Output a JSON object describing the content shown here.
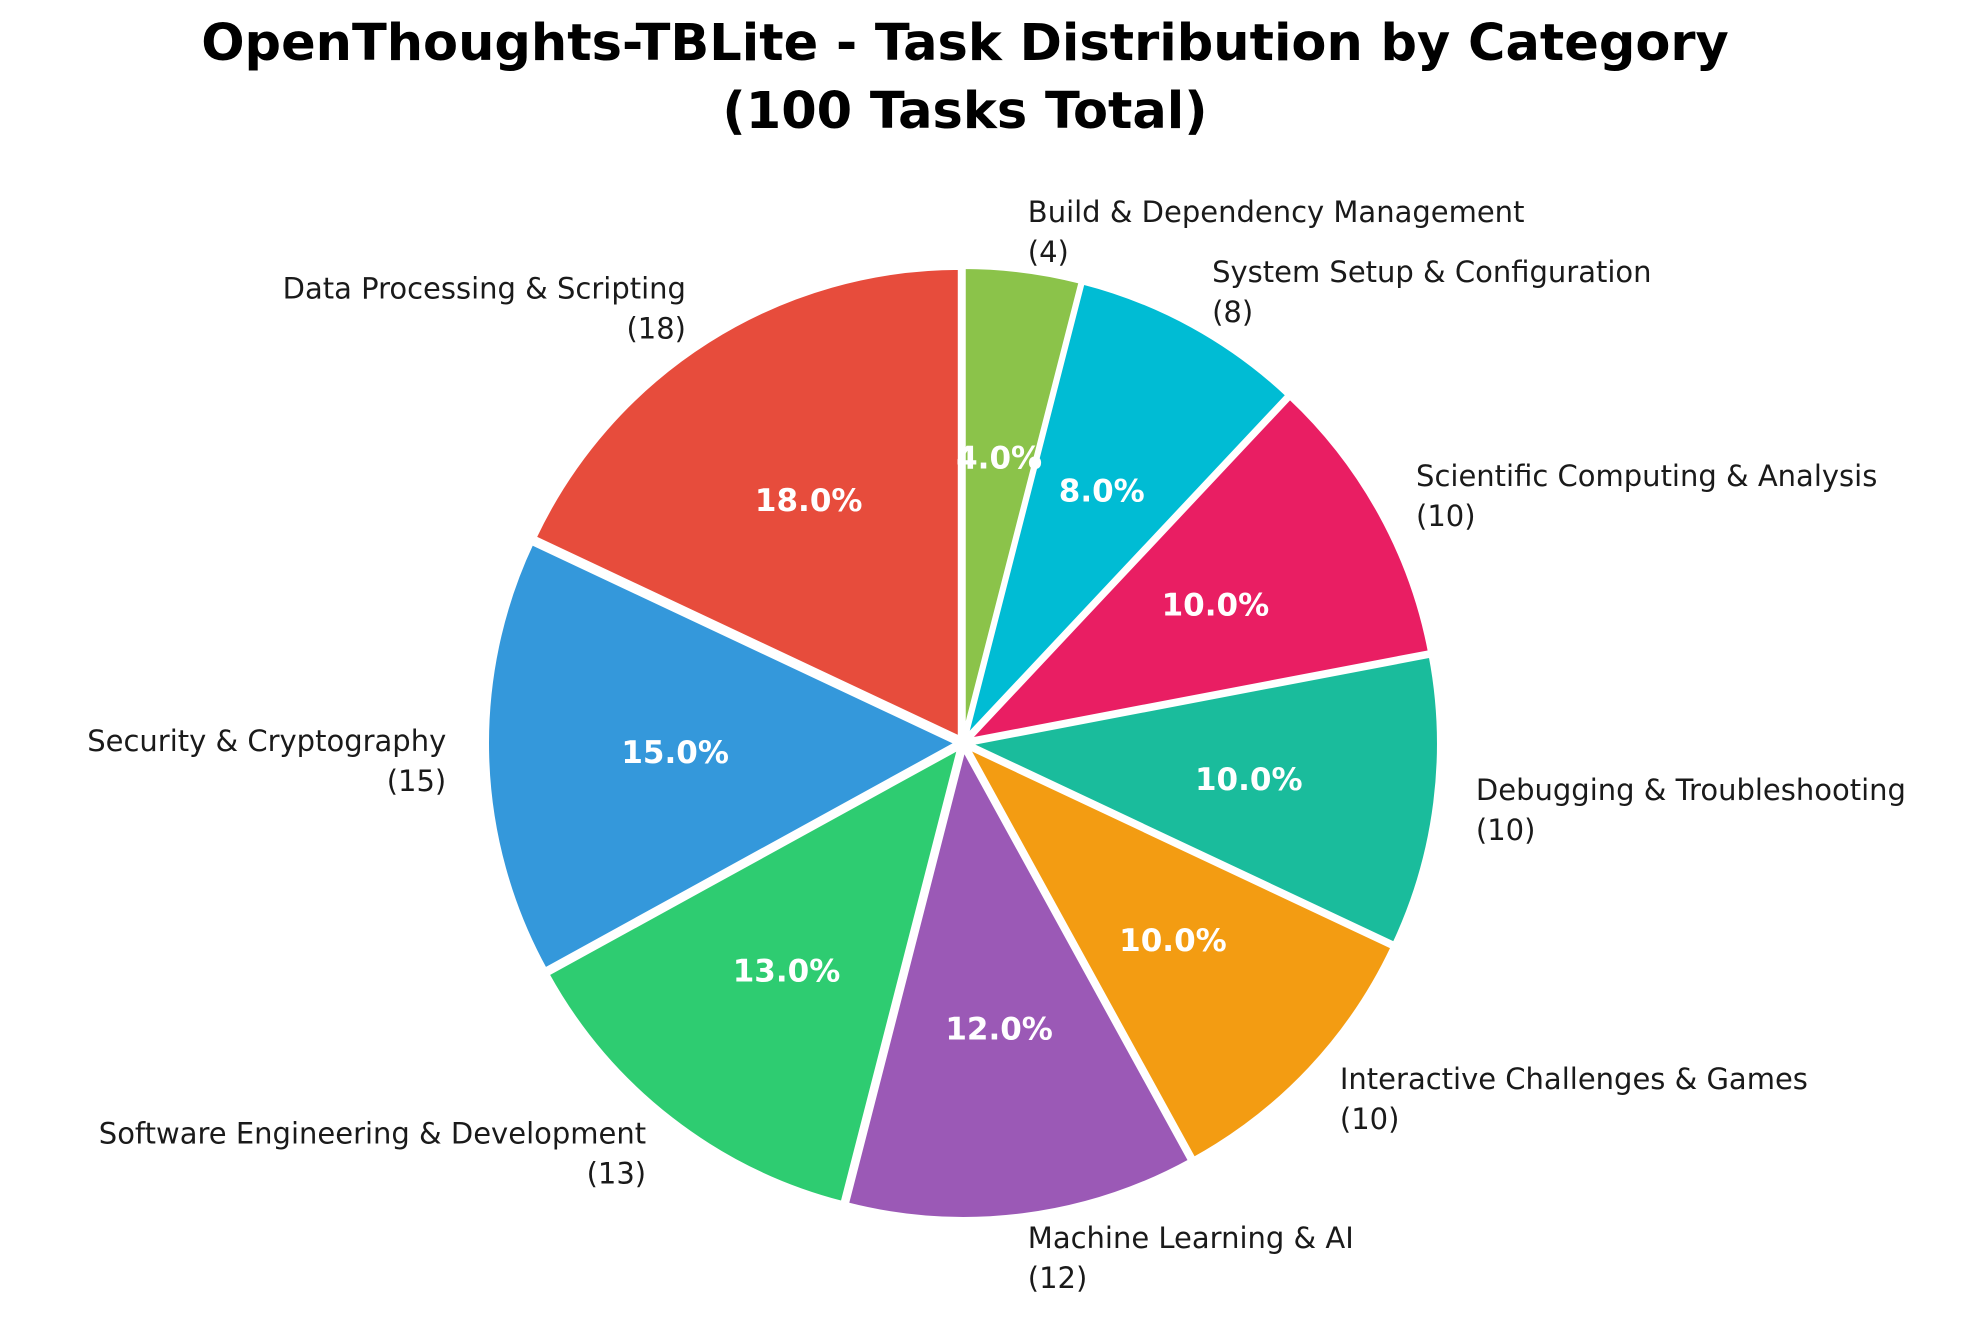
{
  "chart_data": {
    "type": "pie",
    "title": [
      "OpenThoughts-TBLite - Task Distribution by Category",
      "(100 Tasks Total)"
    ],
    "start_angle_deg": 90,
    "direction": "counterclockwise",
    "slices": [
      {
        "label": "Data Processing & Scripting",
        "value": 18,
        "count_label": "(18)",
        "pct_label": "18.0%",
        "color": "#e74c3c"
      },
      {
        "label": "Security & Cryptography",
        "value": 15,
        "count_label": "(15)",
        "pct_label": "15.0%",
        "color": "#3498db"
      },
      {
        "label": "Software Engineering & Development",
        "value": 13,
        "count_label": "(13)",
        "pct_label": "13.0%",
        "color": "#2ecc71"
      },
      {
        "label": "Machine Learning & AI",
        "value": 12,
        "count_label": "(12)",
        "pct_label": "12.0%",
        "color": "#9b59b6"
      },
      {
        "label": "Interactive Challenges & Games",
        "value": 10,
        "count_label": "(10)",
        "pct_label": "10.0%",
        "color": "#f39c12"
      },
      {
        "label": "Debugging & Troubleshooting",
        "value": 10,
        "count_label": "(10)",
        "pct_label": "10.0%",
        "color": "#1abc9c"
      },
      {
        "label": "Scientific Computing & Analysis",
        "value": 10,
        "count_label": "(10)",
        "pct_label": "10.0%",
        "color": "#e91e63"
      },
      {
        "label": "System Setup & Configuration",
        "value": 8,
        "count_label": "(8)",
        "pct_label": "8.0%",
        "color": "#00bcd4"
      },
      {
        "label": "Build & Dependency Management",
        "value": 4,
        "count_label": "(4)",
        "pct_label": "4.0%",
        "color": "#8bc34a"
      }
    ]
  }
}
